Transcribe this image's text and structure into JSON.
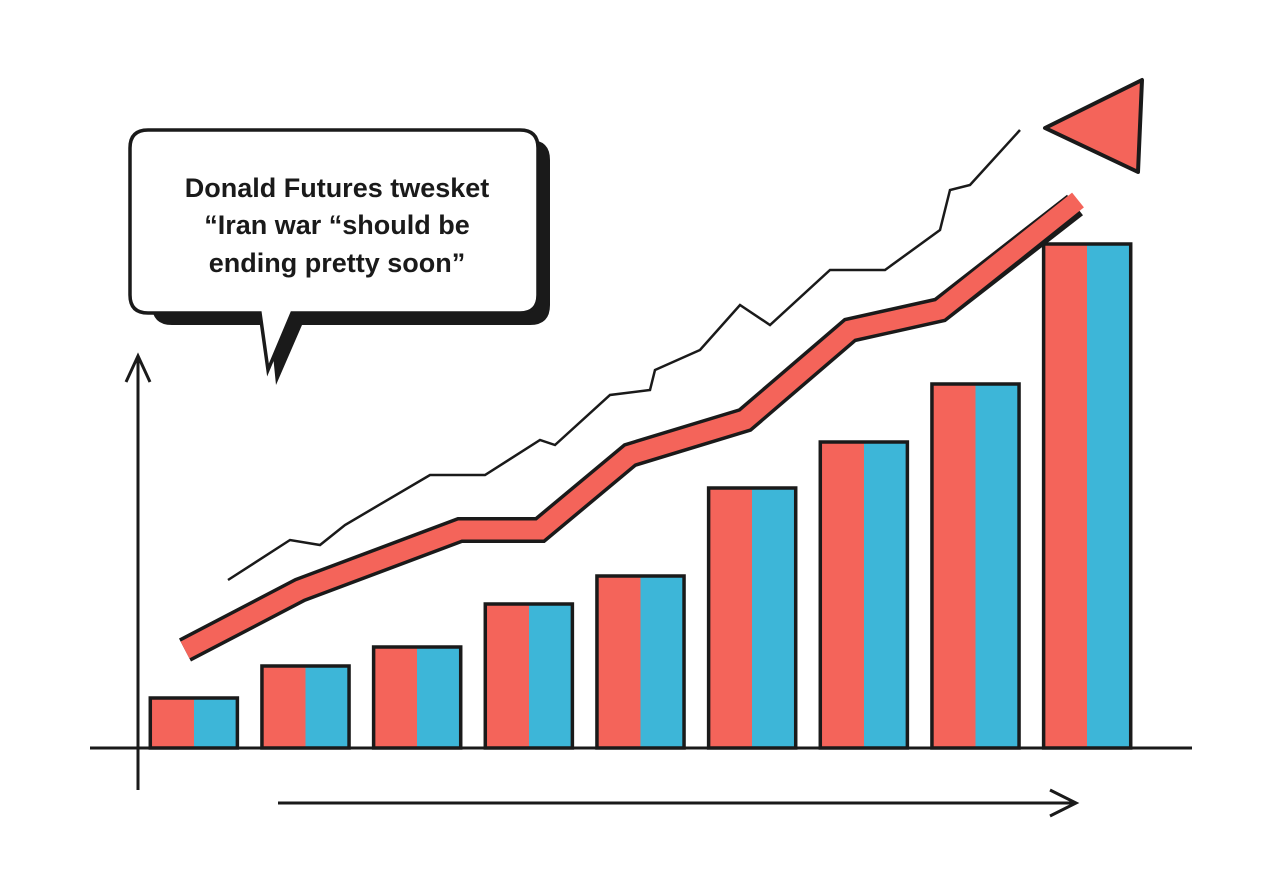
{
  "chart_data": {
    "type": "bar",
    "annotation": [
      "Donald Futures twesket",
      "“Iran war “should be",
      "ending pretty soon”"
    ],
    "categories": [
      null,
      null,
      null,
      null,
      null,
      null,
      null,
      null,
      null
    ],
    "values": [
      50,
      82,
      101,
      144,
      172,
      260,
      306,
      364,
      504
    ],
    "colors": [
      "#f4645a",
      "#3db6d8"
    ],
    "ylim": [
      0,
      600
    ]
  }
}
